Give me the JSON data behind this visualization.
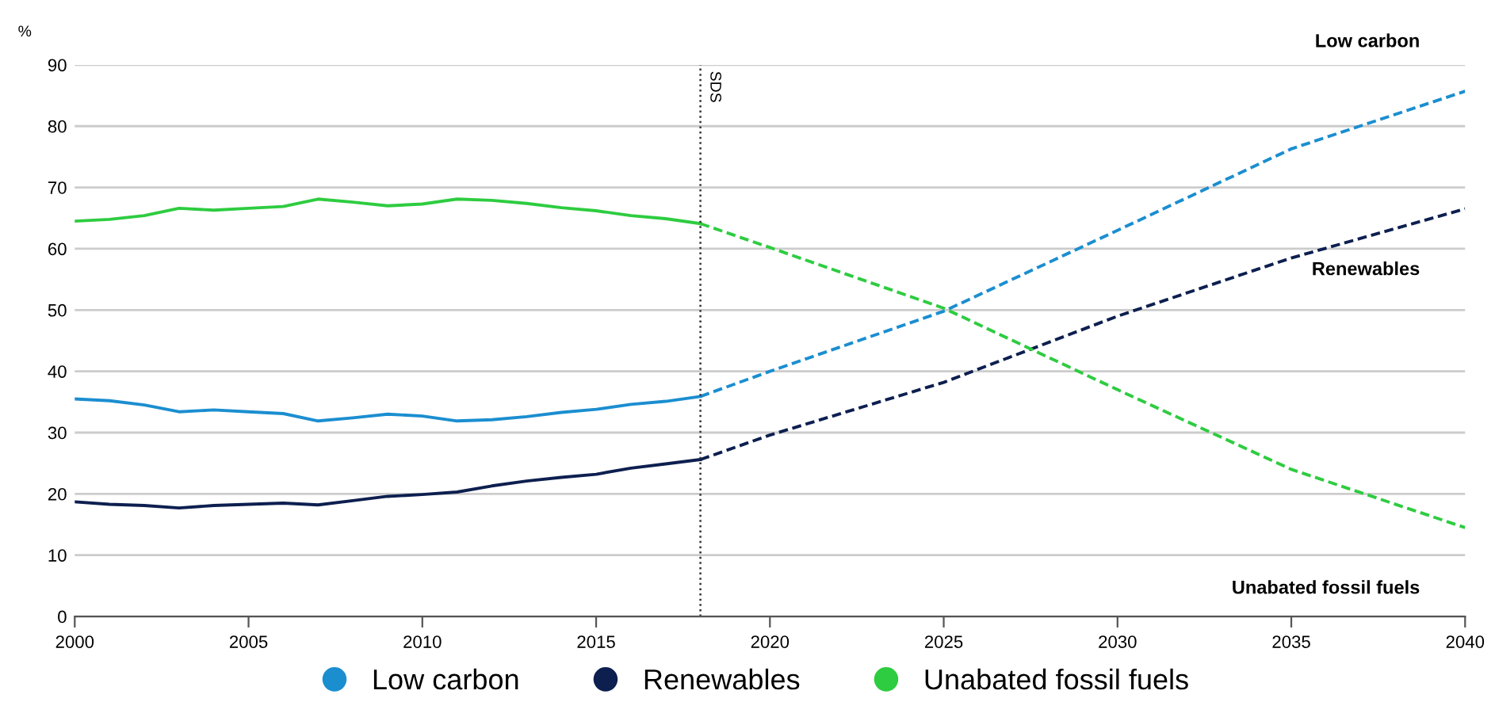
{
  "chart_data": {
    "type": "line",
    "ylabel": "%",
    "xlim": [
      2000,
      2040
    ],
    "xticks": [
      2000,
      2005,
      2010,
      2015,
      2020,
      2025,
      2030,
      2035,
      2040
    ],
    "ylim": [
      0,
      90
    ],
    "yticks": [
      0,
      10,
      20,
      30,
      40,
      50,
      60,
      70,
      80,
      90
    ],
    "grid": "y",
    "legend": "bottom",
    "marker": "none",
    "series": [
      {
        "name": "Low carbon",
        "color": "#1b8ed0",
        "line_style": "solid",
        "x": [
          2000,
          2001,
          2002,
          2003,
          2004,
          2005,
          2006,
          2007,
          2008,
          2009,
          2010,
          2011,
          2012,
          2013,
          2014,
          2015,
          2016,
          2017,
          2018
        ],
        "values": [
          35.5,
          35.2,
          34.5,
          33.4,
          33.7,
          33.4,
          33.1,
          31.9,
          32.4,
          33.0,
          32.7,
          31.9,
          32.1,
          32.6,
          33.3,
          33.8,
          34.6,
          35.1,
          35.9
        ]
      },
      {
        "name": "Renewables",
        "color": "#0d1f4f",
        "line_style": "solid",
        "x": [
          2000,
          2001,
          2002,
          2003,
          2004,
          2005,
          2006,
          2007,
          2008,
          2009,
          2010,
          2011,
          2012,
          2013,
          2014,
          2015,
          2016,
          2017,
          2018
        ],
        "values": [
          18.7,
          18.3,
          18.1,
          17.7,
          18.1,
          18.3,
          18.5,
          18.2,
          18.9,
          19.6,
          19.9,
          20.3,
          21.3,
          22.1,
          22.7,
          23.2,
          24.2,
          24.9,
          25.6
        ]
      },
      {
        "name": "Unabated fossil fuels",
        "color": "#2ecc40",
        "line_style": "solid",
        "x": [
          2000,
          2001,
          2002,
          2003,
          2004,
          2005,
          2006,
          2007,
          2008,
          2009,
          2010,
          2011,
          2012,
          2013,
          2014,
          2015,
          2016,
          2017,
          2018
        ],
        "values": [
          64.5,
          64.8,
          65.4,
          66.6,
          66.3,
          66.6,
          66.9,
          68.1,
          67.6,
          67.0,
          67.3,
          68.1,
          67.9,
          67.4,
          66.7,
          66.2,
          65.4,
          64.9,
          64.1
        ]
      },
      {
        "color": "#1b8ed0",
        "line_style": "dashed",
        "x": [
          2018,
          2020,
          2025,
          2030,
          2035,
          2040
        ],
        "values": [
          35.9,
          40.0,
          49.8,
          63.0,
          76.3,
          85.7
        ]
      },
      {
        "color": "#0d1f4f",
        "line_style": "dashed",
        "x": [
          2018,
          2020,
          2025,
          2030,
          2035,
          2040
        ],
        "values": [
          25.6,
          29.6,
          38.2,
          49.0,
          58.5,
          66.5
        ]
      },
      {
        "color": "#2ecc40",
        "line_style": "dashed",
        "x": [
          2018,
          2020,
          2025,
          2030,
          2035,
          2040
        ],
        "values": [
          64.1,
          60.2,
          50.3,
          37.0,
          24.0,
          14.5
        ]
      }
    ],
    "ref_lines": [
      {
        "axis": "x",
        "value": 2018,
        "label": "SDS",
        "line_style": "dotted",
        "color": "#333333"
      }
    ],
    "annotations": [
      "Low carbon",
      "Renewables",
      "Unabated fossil fuels"
    ]
  }
}
